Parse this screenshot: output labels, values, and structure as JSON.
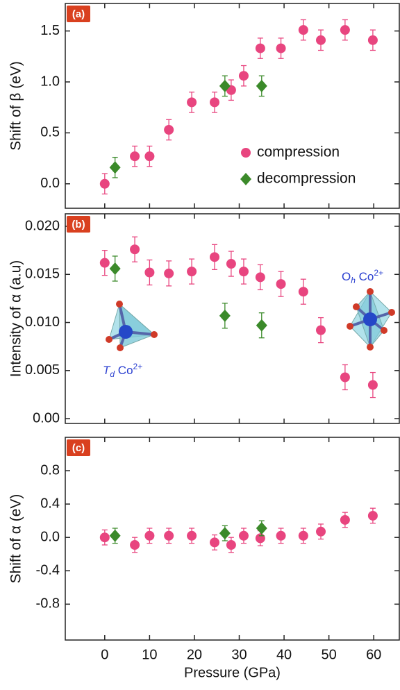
{
  "chart_data": [
    {
      "type": "scatter",
      "panel_label": "(a)",
      "ylabel": "Shift of β (eV)",
      "xlim": [
        -8.8,
        65.7
      ],
      "xticks": [
        0,
        10,
        20,
        30,
        40,
        50,
        60
      ],
      "ylim": [
        -0.24,
        1.77
      ],
      "yticks": [
        {
          "value": 0,
          "label": "0.0"
        },
        {
          "value": 0.5,
          "label": "0.5"
        },
        {
          "value": 1,
          "label": "1.0"
        },
        {
          "value": 1.5,
          "label": "1.5"
        }
      ],
      "legend": "lower right",
      "series": [
        {
          "name": "compression",
          "marker": "circle",
          "color": "#e8457f",
          "x": [
            0,
            6.7,
            10,
            14.3,
            19.4,
            24.5,
            28.2,
            31,
            34.7,
            39.3,
            44.3,
            48.2,
            53.6,
            59.8
          ],
          "values": [
            0,
            0.27,
            0.27,
            0.53,
            0.8,
            0.8,
            0.92,
            1.06,
            1.33,
            1.33,
            1.51,
            1.41,
            1.51,
            1.41
          ],
          "errors": [
            0.1,
            0.1,
            0.1,
            0.1,
            0.1,
            0.1,
            0.1,
            0.1,
            0.1,
            0.1,
            0.1,
            0.1,
            0.1,
            0.1
          ]
        },
        {
          "name": "decompression",
          "marker": "diamond",
          "color": "#3b8a2a",
          "x": [
            2.3,
            26.8,
            35
          ],
          "values": [
            0.16,
            0.96,
            0.96
          ],
          "errors": [
            0.1,
            0.1,
            0.1
          ]
        }
      ]
    },
    {
      "type": "scatter",
      "panel_label": "(b)",
      "ylabel": "Intensity of α (a.u)",
      "xlim": [
        -8.8,
        65.7
      ],
      "xticks": [
        0,
        10,
        20,
        30,
        40,
        50,
        60
      ],
      "ylim": [
        -0.0005,
        0.0213
      ],
      "yticks": [
        {
          "value": 0,
          "label": "0.00"
        },
        {
          "value": 0.005,
          "label": "0.005"
        },
        {
          "value": 0.01,
          "label": "0.010"
        },
        {
          "value": 0.015,
          "label": "0.015"
        },
        {
          "value": 0.02,
          "label": "0.020"
        }
      ],
      "annotations": [
        {
          "symbol": "T",
          "sub": "d",
          "ion": " Co",
          "charge": "2+"
        },
        {
          "symbol": "O",
          "sub": "h",
          "ion": " Co",
          "charge": "2+"
        }
      ],
      "series": [
        {
          "name": "compression",
          "marker": "circle",
          "color": "#e8457f",
          "x": [
            0,
            6.7,
            10,
            14.3,
            19.4,
            24.5,
            28.2,
            31,
            34.7,
            39.3,
            44.3,
            48.2,
            53.6,
            59.8
          ],
          "values": [
            0.0162,
            0.0176,
            0.0152,
            0.0151,
            0.0153,
            0.0168,
            0.0161,
            0.0153,
            0.0147,
            0.014,
            0.0132,
            0.0092,
            0.0043,
            0.0035
          ],
          "errors": [
            0.0013,
            0.0013,
            0.0013,
            0.0013,
            0.0013,
            0.0013,
            0.0013,
            0.0013,
            0.0013,
            0.0013,
            0.0013,
            0.0013,
            0.0013,
            0.0013
          ]
        },
        {
          "name": "decompression",
          "marker": "diamond",
          "color": "#3b8a2a",
          "x": [
            2.3,
            26.8,
            35
          ],
          "values": [
            0.0156,
            0.0107,
            0.0097
          ],
          "errors": [
            0.0013,
            0.0013,
            0.0013
          ]
        }
      ]
    },
    {
      "type": "scatter",
      "panel_label": "(c)",
      "ylabel": "Shift of α (eV)",
      "xlabel": "Pressure (GPa)",
      "xlim": [
        -8.8,
        65.7
      ],
      "xticks": [
        0,
        10,
        20,
        30,
        40,
        50,
        60
      ],
      "ylim": [
        -1.23,
        1.2
      ],
      "yticks": [
        {
          "value": -0.8,
          "label": "-0.8"
        },
        {
          "value": -0.4,
          "label": "-0.4"
        },
        {
          "value": 0,
          "label": "0.0"
        },
        {
          "value": 0.4,
          "label": "0.4"
        },
        {
          "value": 0.8,
          "label": "0.8"
        }
      ],
      "series": [
        {
          "name": "compression",
          "marker": "circle",
          "color": "#e8457f",
          "x": [
            0,
            6.7,
            10,
            14.3,
            19.4,
            24.5,
            28.2,
            31,
            34.7,
            39.3,
            44.3,
            48.2,
            53.6,
            59.8
          ],
          "values": [
            0,
            -0.09,
            0.02,
            0.02,
            0.02,
            -0.06,
            -0.09,
            0.02,
            -0.01,
            0.02,
            0.02,
            0.07,
            0.21,
            0.26
          ],
          "errors": [
            0.09,
            0.09,
            0.09,
            0.09,
            0.09,
            0.09,
            0.09,
            0.09,
            0.09,
            0.09,
            0.09,
            0.09,
            0.09,
            0.09
          ]
        },
        {
          "name": "decompression",
          "marker": "diamond",
          "color": "#3b8a2a",
          "x": [
            2.3,
            26.8,
            35
          ],
          "values": [
            0.02,
            0.05,
            0.11
          ],
          "errors": [
            0.09,
            0.09,
            0.09
          ]
        }
      ]
    }
  ]
}
